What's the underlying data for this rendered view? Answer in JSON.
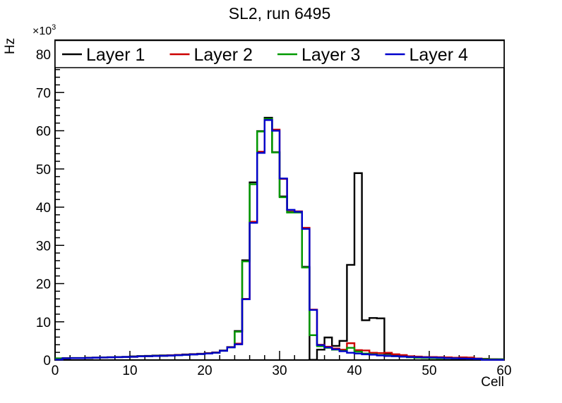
{
  "title": "SL2, run 6495",
  "chart_data": {
    "type": "step-histogram",
    "title": "SL2, run 6495",
    "xlabel": "Cell",
    "ylabel": "Hz",
    "y_multiplier": {
      "base": "×10",
      "exp": "3"
    },
    "value_scale_note": "series values are in units of 10^3 Hz as indicated by the ×10³ axis multiplier",
    "xlim": [
      0,
      60
    ],
    "ylim": [
      0,
      83700
    ],
    "bin_width": 1,
    "x_major_ticks": [
      0,
      10,
      20,
      30,
      40,
      50,
      60
    ],
    "x_minor_step": 2,
    "y_major_ticks_k": [
      0,
      10,
      20,
      30,
      40,
      50,
      60,
      70,
      80
    ],
    "y_minor_step_k": 2,
    "grid": false,
    "legend_position": "top full-width horizontal, 4 columns",
    "series": [
      {
        "name": "Layer 1",
        "color": "#000000",
        "values": [
          0.45,
          0.5,
          0.55,
          0.55,
          0.6,
          0.65,
          0.7,
          0.75,
          0.8,
          0.85,
          0.95,
          1.05,
          1.1,
          1.15,
          1.2,
          1.25,
          1.35,
          1.45,
          1.55,
          1.65,
          1.8,
          2.0,
          2.5,
          3.4,
          7.6,
          26.1,
          46.5,
          59.9,
          63.4,
          54.4,
          42.8,
          38.7,
          38.7,
          24.4,
          0.05,
          2.7,
          5.9,
          3.7,
          5.0,
          24.9,
          48.9,
          10.4,
          11.0,
          10.9,
          1.6,
          1.35,
          1.1,
          0.95,
          0.85,
          0.75,
          0.7,
          0.65,
          0.6,
          0.5,
          0.45,
          0.4,
          0.35,
          0.3,
          0.25,
          0.2
        ]
      },
      {
        "name": "Layer 2",
        "color": "#cc0000",
        "values": [
          0.4,
          0.45,
          0.5,
          0.5,
          0.55,
          0.6,
          0.65,
          0.7,
          0.75,
          0.8,
          0.85,
          0.95,
          1.0,
          1.05,
          1.1,
          1.2,
          1.3,
          1.4,
          1.5,
          1.6,
          1.75,
          1.95,
          2.45,
          3.35,
          4.3,
          16.0,
          36.2,
          54.5,
          62.9,
          60.3,
          47.4,
          39.2,
          38.9,
          34.6,
          13.2,
          4.0,
          3.5,
          3.0,
          2.7,
          4.4,
          2.6,
          2.5,
          1.9,
          1.8,
          1.9,
          1.5,
          1.3,
          1.0,
          0.9,
          0.8,
          0.8,
          0.75,
          0.7,
          0.6,
          0.7,
          0.65,
          0.4,
          0.3,
          0.25,
          0.2
        ]
      },
      {
        "name": "Layer 3",
        "color": "#009900",
        "values": [
          0.42,
          0.45,
          0.5,
          0.5,
          0.55,
          0.6,
          0.65,
          0.7,
          0.75,
          0.8,
          0.85,
          0.95,
          1.0,
          1.05,
          1.1,
          1.15,
          1.25,
          1.35,
          1.45,
          1.55,
          1.7,
          1.9,
          2.4,
          3.3,
          7.4,
          25.8,
          46.0,
          59.8,
          63.1,
          54.3,
          42.6,
          38.6,
          38.6,
          24.2,
          6.5,
          3.6,
          3.2,
          2.7,
          2.4,
          3.2,
          2.2,
          1.7,
          1.5,
          1.3,
          1.1,
          1.0,
          0.9,
          0.7,
          0.6,
          0.55,
          0.5,
          0.45,
          0.45,
          0.45,
          0.4,
          0.35,
          0.3,
          0.25,
          0.2,
          0.2
        ]
      },
      {
        "name": "Layer 4",
        "color": "#0000cc",
        "values": [
          0.12,
          0.45,
          0.5,
          0.5,
          0.55,
          0.6,
          0.65,
          0.7,
          0.75,
          0.8,
          0.85,
          0.95,
          1.0,
          1.05,
          1.1,
          1.15,
          1.25,
          1.35,
          1.45,
          1.55,
          1.7,
          1.9,
          2.4,
          3.3,
          4.1,
          15.9,
          35.9,
          54.2,
          62.8,
          60.0,
          47.5,
          39.3,
          38.8,
          34.3,
          13.1,
          3.9,
          3.3,
          2.8,
          2.3,
          1.9,
          1.7,
          1.5,
          1.4,
          1.2,
          1.05,
          1.0,
          0.9,
          0.8,
          0.75,
          0.7,
          0.65,
          0.6,
          0.5,
          0.45,
          0.4,
          0.35,
          0.3,
          0.05,
          0.05,
          0.05
        ]
      }
    ]
  }
}
